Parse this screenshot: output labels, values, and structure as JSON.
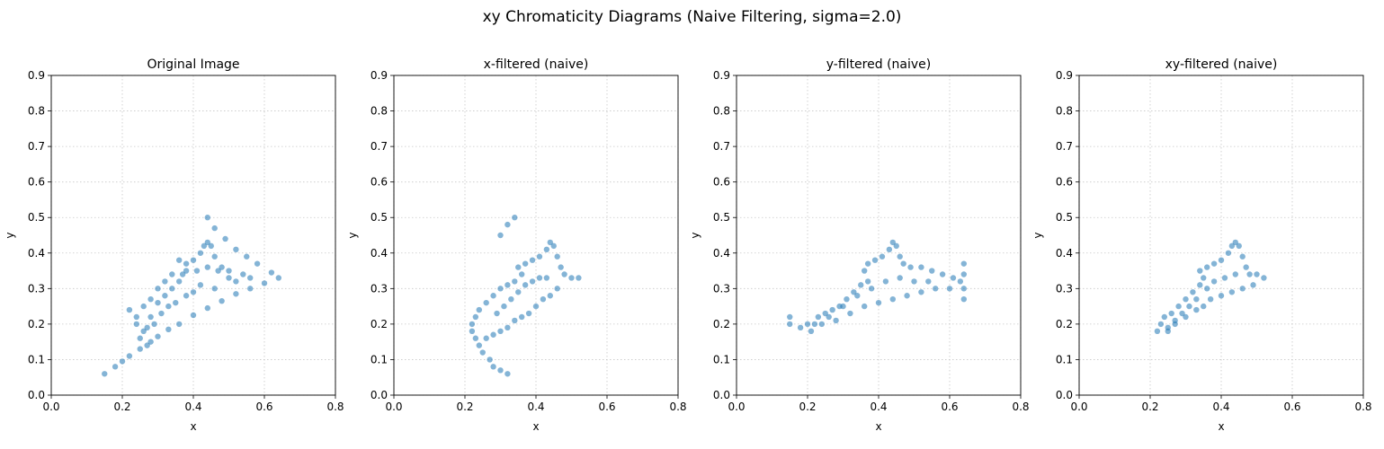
{
  "figure": {
    "suptitle": "xy Chromaticity Diagrams (Naive Filtering, sigma=2.0)",
    "point_color": "#1f77b4"
  },
  "chart_data": [
    {
      "type": "scatter",
      "title": "Original Image",
      "xlabel": "x",
      "ylabel": "y",
      "xlim": [
        0,
        0.8
      ],
      "ylim": [
        0,
        0.9
      ],
      "xticks": [
        "0.0",
        "0.2",
        "0.4",
        "0.6",
        "0.8"
      ],
      "yticks": [
        "0.0",
        "0.1",
        "0.2",
        "0.3",
        "0.4",
        "0.5",
        "0.6",
        "0.7",
        "0.8",
        "0.9"
      ],
      "grid": true,
      "series": [
        {
          "points": [
            [
              0.15,
              0.06
            ],
            [
              0.18,
              0.08
            ],
            [
              0.2,
              0.095
            ],
            [
              0.22,
              0.11
            ],
            [
              0.25,
              0.13
            ],
            [
              0.28,
              0.15
            ],
            [
              0.3,
              0.165
            ],
            [
              0.33,
              0.185
            ],
            [
              0.36,
              0.2
            ],
            [
              0.4,
              0.225
            ],
            [
              0.44,
              0.245
            ],
            [
              0.48,
              0.265
            ],
            [
              0.52,
              0.285
            ],
            [
              0.56,
              0.3
            ],
            [
              0.6,
              0.315
            ],
            [
              0.64,
              0.33
            ],
            [
              0.62,
              0.345
            ],
            [
              0.58,
              0.37
            ],
            [
              0.55,
              0.39
            ],
            [
              0.52,
              0.41
            ],
            [
              0.49,
              0.44
            ],
            [
              0.46,
              0.47
            ],
            [
              0.44,
              0.5
            ],
            [
              0.22,
              0.24
            ],
            [
              0.24,
              0.2
            ],
            [
              0.25,
              0.16
            ],
            [
              0.26,
              0.18
            ],
            [
              0.27,
              0.14
            ],
            [
              0.28,
              0.22
            ],
            [
              0.3,
              0.26
            ],
            [
              0.32,
              0.28
            ],
            [
              0.34,
              0.3
            ],
            [
              0.36,
              0.32
            ],
            [
              0.38,
              0.35
            ],
            [
              0.36,
              0.38
            ],
            [
              0.38,
              0.37
            ],
            [
              0.4,
              0.38
            ],
            [
              0.42,
              0.4
            ],
            [
              0.43,
              0.42
            ],
            [
              0.44,
              0.43
            ],
            [
              0.45,
              0.42
            ],
            [
              0.46,
              0.39
            ],
            [
              0.48,
              0.36
            ],
            [
              0.5,
              0.33
            ],
            [
              0.52,
              0.32
            ],
            [
              0.46,
              0.3
            ],
            [
              0.42,
              0.31
            ],
            [
              0.4,
              0.29
            ],
            [
              0.38,
              0.28
            ],
            [
              0.35,
              0.26
            ],
            [
              0.33,
              0.25
            ],
            [
              0.31,
              0.23
            ],
            [
              0.29,
              0.2
            ],
            [
              0.27,
              0.19
            ],
            [
              0.24,
              0.22
            ],
            [
              0.26,
              0.25
            ],
            [
              0.28,
              0.27
            ],
            [
              0.3,
              0.3
            ],
            [
              0.32,
              0.32
            ],
            [
              0.34,
              0.34
            ],
            [
              0.37,
              0.34
            ],
            [
              0.41,
              0.35
            ],
            [
              0.44,
              0.36
            ],
            [
              0.47,
              0.35
            ],
            [
              0.5,
              0.35
            ],
            [
              0.54,
              0.34
            ],
            [
              0.56,
              0.33
            ]
          ]
        }
      ]
    },
    {
      "type": "scatter",
      "title": "x-filtered (naive)",
      "xlabel": "x",
      "ylabel": "y",
      "xlim": [
        0,
        0.8
      ],
      "ylim": [
        0,
        0.9
      ],
      "xticks": [
        "0.0",
        "0.2",
        "0.4",
        "0.6",
        "0.8"
      ],
      "yticks": [
        "0.0",
        "0.1",
        "0.2",
        "0.3",
        "0.4",
        "0.5",
        "0.6",
        "0.7",
        "0.8",
        "0.9"
      ],
      "grid": true,
      "series": [
        {
          "points": [
            [
              0.22,
              0.18
            ],
            [
              0.23,
              0.16
            ],
            [
              0.24,
              0.14
            ],
            [
              0.25,
              0.12
            ],
            [
              0.27,
              0.1
            ],
            [
              0.28,
              0.08
            ],
            [
              0.3,
              0.07
            ],
            [
              0.32,
              0.06
            ],
            [
              0.22,
              0.2
            ],
            [
              0.23,
              0.22
            ],
            [
              0.24,
              0.24
            ],
            [
              0.26,
              0.26
            ],
            [
              0.28,
              0.28
            ],
            [
              0.3,
              0.3
            ],
            [
              0.32,
              0.31
            ],
            [
              0.34,
              0.32
            ],
            [
              0.36,
              0.34
            ],
            [
              0.35,
              0.36
            ],
            [
              0.37,
              0.37
            ],
            [
              0.39,
              0.38
            ],
            [
              0.41,
              0.39
            ],
            [
              0.43,
              0.41
            ],
            [
              0.44,
              0.43
            ],
            [
              0.45,
              0.42
            ],
            [
              0.46,
              0.39
            ],
            [
              0.47,
              0.36
            ],
            [
              0.48,
              0.34
            ],
            [
              0.5,
              0.33
            ],
            [
              0.52,
              0.33
            ],
            [
              0.46,
              0.3
            ],
            [
              0.44,
              0.28
            ],
            [
              0.42,
              0.27
            ],
            [
              0.4,
              0.25
            ],
            [
              0.38,
              0.23
            ],
            [
              0.36,
              0.22
            ],
            [
              0.34,
              0.21
            ],
            [
              0.32,
              0.19
            ],
            [
              0.3,
              0.18
            ],
            [
              0.28,
              0.17
            ],
            [
              0.26,
              0.16
            ],
            [
              0.29,
              0.23
            ],
            [
              0.31,
              0.25
            ],
            [
              0.33,
              0.27
            ],
            [
              0.35,
              0.29
            ],
            [
              0.37,
              0.31
            ],
            [
              0.39,
              0.32
            ],
            [
              0.41,
              0.33
            ],
            [
              0.43,
              0.33
            ],
            [
              0.3,
              0.45
            ],
            [
              0.32,
              0.48
            ],
            [
              0.34,
              0.5
            ]
          ]
        }
      ]
    },
    {
      "type": "scatter",
      "title": "y-filtered (naive)",
      "xlabel": "x",
      "ylabel": "y",
      "xlim": [
        0,
        0.8
      ],
      "ylim": [
        0,
        0.9
      ],
      "xticks": [
        "0.0",
        "0.2",
        "0.4",
        "0.6",
        "0.8"
      ],
      "yticks": [
        "0.0",
        "0.1",
        "0.2",
        "0.3",
        "0.4",
        "0.5",
        "0.6",
        "0.7",
        "0.8",
        "0.9"
      ],
      "grid": true,
      "series": [
        {
          "points": [
            [
              0.15,
              0.2
            ],
            [
              0.15,
              0.22
            ],
            [
              0.18,
              0.19
            ],
            [
              0.2,
              0.2
            ],
            [
              0.21,
              0.18
            ],
            [
              0.22,
              0.2
            ],
            [
              0.23,
              0.22
            ],
            [
              0.25,
              0.23
            ],
            [
              0.27,
              0.24
            ],
            [
              0.29,
              0.25
            ],
            [
              0.31,
              0.27
            ],
            [
              0.33,
              0.29
            ],
            [
              0.35,
              0.31
            ],
            [
              0.37,
              0.32
            ],
            [
              0.36,
              0.35
            ],
            [
              0.37,
              0.37
            ],
            [
              0.39,
              0.38
            ],
            [
              0.41,
              0.39
            ],
            [
              0.43,
              0.41
            ],
            [
              0.44,
              0.43
            ],
            [
              0.45,
              0.42
            ],
            [
              0.46,
              0.39
            ],
            [
              0.47,
              0.37
            ],
            [
              0.49,
              0.36
            ],
            [
              0.52,
              0.36
            ],
            [
              0.55,
              0.35
            ],
            [
              0.58,
              0.34
            ],
            [
              0.61,
              0.33
            ],
            [
              0.63,
              0.32
            ],
            [
              0.64,
              0.34
            ],
            [
              0.64,
              0.37
            ],
            [
              0.64,
              0.3
            ],
            [
              0.64,
              0.27
            ],
            [
              0.6,
              0.3
            ],
            [
              0.56,
              0.3
            ],
            [
              0.52,
              0.29
            ],
            [
              0.48,
              0.28
            ],
            [
              0.44,
              0.27
            ],
            [
              0.4,
              0.26
            ],
            [
              0.36,
              0.25
            ],
            [
              0.32,
              0.23
            ],
            [
              0.28,
              0.21
            ],
            [
              0.24,
              0.2
            ],
            [
              0.26,
              0.22
            ],
            [
              0.3,
              0.25
            ],
            [
              0.34,
              0.28
            ],
            [
              0.38,
              0.3
            ],
            [
              0.42,
              0.32
            ],
            [
              0.46,
              0.33
            ],
            [
              0.5,
              0.32
            ],
            [
              0.54,
              0.32
            ]
          ]
        }
      ]
    },
    {
      "type": "scatter",
      "title": "xy-filtered (naive)",
      "xlabel": "x",
      "ylabel": "y",
      "xlim": [
        0,
        0.8
      ],
      "ylim": [
        0,
        0.9
      ],
      "xticks": [
        "0.0",
        "0.2",
        "0.4",
        "0.6",
        "0.8"
      ],
      "yticks": [
        "0.0",
        "0.1",
        "0.2",
        "0.3",
        "0.4",
        "0.5",
        "0.6",
        "0.7",
        "0.8",
        "0.9"
      ],
      "grid": true,
      "series": [
        {
          "points": [
            [
              0.22,
              0.18
            ],
            [
              0.23,
              0.2
            ],
            [
              0.24,
              0.22
            ],
            [
              0.25,
              0.19
            ],
            [
              0.26,
              0.23
            ],
            [
              0.27,
              0.21
            ],
            [
              0.28,
              0.25
            ],
            [
              0.29,
              0.23
            ],
            [
              0.3,
              0.27
            ],
            [
              0.31,
              0.25
            ],
            [
              0.32,
              0.29
            ],
            [
              0.33,
              0.27
            ],
            [
              0.34,
              0.31
            ],
            [
              0.35,
              0.33
            ],
            [
              0.34,
              0.35
            ],
            [
              0.36,
              0.36
            ],
            [
              0.38,
              0.37
            ],
            [
              0.4,
              0.38
            ],
            [
              0.42,
              0.4
            ],
            [
              0.43,
              0.42
            ],
            [
              0.44,
              0.43
            ],
            [
              0.45,
              0.42
            ],
            [
              0.46,
              0.39
            ],
            [
              0.47,
              0.36
            ],
            [
              0.48,
              0.34
            ],
            [
              0.5,
              0.34
            ],
            [
              0.52,
              0.33
            ],
            [
              0.49,
              0.31
            ],
            [
              0.46,
              0.3
            ],
            [
              0.43,
              0.29
            ],
            [
              0.4,
              0.28
            ],
            [
              0.37,
              0.27
            ],
            [
              0.35,
              0.25
            ],
            [
              0.33,
              0.24
            ],
            [
              0.3,
              0.22
            ],
            [
              0.27,
              0.2
            ],
            [
              0.25,
              0.18
            ],
            [
              0.36,
              0.3
            ],
            [
              0.38,
              0.32
            ],
            [
              0.41,
              0.33
            ],
            [
              0.44,
              0.34
            ]
          ]
        }
      ]
    }
  ]
}
